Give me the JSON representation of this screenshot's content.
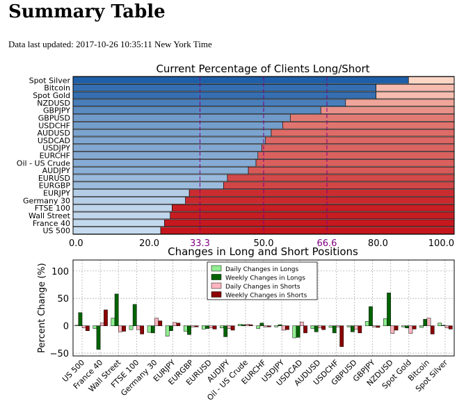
{
  "page": {
    "title": "Summary Table",
    "updated": "Data last updated: 2017-10-26 10:35:11 New York Time"
  },
  "chart_data": [
    {
      "type": "bar",
      "orientation": "horizontal-stacked",
      "title": "Current Percentage of Clients Long/Short",
      "categories": [
        "Spot Silver",
        "Bitcoin",
        "Spot Gold",
        "NZDUSD",
        "GBPJPY",
        "GBPUSD",
        "USDCHF",
        "AUDUSD",
        "USDCAD",
        "USDJPY",
        "EURCHF",
        "Oil - US Crude",
        "AUDJPY",
        "EURUSD",
        "EURGBP",
        "EURJPY",
        "Germany 30",
        "FTSE 100",
        "Wall Street",
        "France 40",
        "US 500"
      ],
      "long_values": [
        88,
        79.5,
        79.5,
        71.5,
        65,
        57,
        55,
        52,
        50.5,
        49.5,
        48.5,
        48,
        46,
        40.5,
        39.5,
        30.5,
        29.5,
        26,
        25.5,
        24,
        23
      ],
      "xlim": [
        0,
        100
      ],
      "xticks": [
        "0.0",
        "20.0",
        "33.3",
        "50.0",
        "66.6",
        "80.0",
        "100.0"
      ],
      "reference_lines": [
        33.3,
        50.0,
        66.6
      ],
      "grid": true,
      "colors": {
        "long_dark": "#1f5fa8",
        "long_light": "#c6dbef",
        "short_light": "#fdd5c5",
        "short_dark": "#c4161c",
        "ref_line": "#800080"
      }
    },
    {
      "type": "bar",
      "title": "Changes in Long and Short Positions",
      "ylabel": "Percent Change (%)",
      "ylim": [
        -55,
        120
      ],
      "yticks": [
        "100",
        "50",
        "0",
        "−50"
      ],
      "categories": [
        "US 500",
        "France 40",
        "Wall Street",
        "FTSE 100",
        "Germany 30",
        "EURJPY",
        "EURGBP",
        "EURUSD",
        "AUDJPY",
        "Oil - US Crude",
        "EURCHF",
        "USDJPY",
        "USDCAD",
        "AUDUSD",
        "USDCHF",
        "GBPUSD",
        "GBPJPY",
        "NZDUSD",
        "Spot Gold",
        "Bitcoin",
        "Spot Silver"
      ],
      "series": [
        {
          "name": "Daily Changes in Longs",
          "color": "#90ee90",
          "values": [
            1,
            -5,
            14,
            -7,
            -12,
            -19,
            -10,
            -6,
            -4,
            3,
            -5,
            -2,
            -22,
            -5,
            -3,
            -2,
            8,
            13,
            -2,
            -3,
            5
          ]
        },
        {
          "name": "Weekly Changes in Longs",
          "color": "#006400",
          "values": [
            24,
            -43,
            58,
            39,
            -13,
            -9,
            -16,
            -5,
            -20,
            2,
            5,
            2,
            -21,
            -11,
            -13,
            -11,
            35,
            60,
            -4,
            12,
            1
          ]
        },
        {
          "name": "Daily Changes in Shorts",
          "color": "#ffb6c1",
          "values": [
            -4,
            5,
            -11,
            -7,
            14,
            6,
            -2,
            -4,
            -5,
            3,
            -2,
            -8,
            7,
            -4,
            -2,
            -6,
            -2,
            -14,
            -14,
            14,
            -4
          ]
        },
        {
          "name": "Weekly Changes in Shorts",
          "color": "#8b0000",
          "values": [
            -9,
            29,
            -10,
            -15,
            9,
            5,
            -2,
            -6,
            -8,
            2,
            -2,
            -7,
            -13,
            -7,
            -38,
            -13,
            -3,
            -8,
            -6,
            -15,
            -6
          ]
        }
      ],
      "legend": "top-center",
      "grid": true
    }
  ]
}
